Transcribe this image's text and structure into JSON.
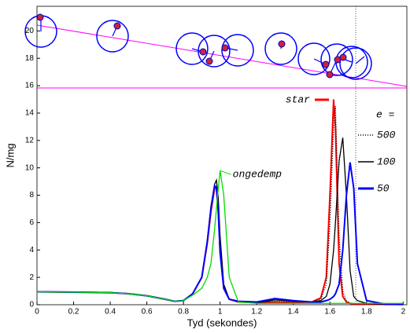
{
  "chart_data": {
    "type": "line",
    "xlabel": "Tyd (sekondes)",
    "ylabel": "N/mg",
    "legend_title": "e =",
    "xlim": [
      0,
      2.02
    ],
    "ylim": [
      0,
      21.8
    ],
    "xticks": [
      0,
      0.2,
      0.4,
      0.6,
      0.8,
      1,
      1.2,
      1.4,
      1.6,
      1.8,
      2
    ],
    "yticks": [
      0,
      2,
      4,
      6,
      8,
      10,
      12,
      14,
      16,
      18,
      20
    ],
    "x": [
      0,
      0.1,
      0.2,
      0.3,
      0.4,
      0.5,
      0.6,
      0.7,
      0.75,
      0.8,
      0.85,
      0.9,
      0.93,
      0.95,
      0.97,
      0.98,
      0.99,
      1.0,
      1.02,
      1.05,
      1.1,
      1.2,
      1.3,
      1.4,
      1.5,
      1.55,
      1.58,
      1.6,
      1.62,
      1.63,
      1.65,
      1.67,
      1.69,
      1.71,
      1.73,
      1.75,
      1.8,
      1.9,
      2.0
    ],
    "series": [
      {
        "name": "star",
        "color": "#ff0000",
        "dash": "solid",
        "values": [
          0.95,
          0.93,
          0.92,
          0.9,
          0.88,
          0.8,
          0.65,
          0.4,
          0.25,
          0.3,
          0.8,
          2,
          4.5,
          6.8,
          8.5,
          8.6,
          7,
          4,
          1.2,
          0.4,
          0.2,
          0.15,
          0.2,
          0.15,
          0.2,
          0.5,
          2,
          8,
          15,
          13,
          3,
          0.6,
          0.2,
          0.1,
          0.05,
          0.05,
          0.05,
          0.02,
          0.02
        ]
      },
      {
        "name": "500",
        "color": "#000000",
        "dash": "dotted",
        "values": [
          0.95,
          0.93,
          0.92,
          0.9,
          0.88,
          0.8,
          0.65,
          0.4,
          0.25,
          0.3,
          0.8,
          2,
          4.5,
          6.9,
          8.6,
          8.7,
          7.2,
          4.2,
          1.3,
          0.4,
          0.2,
          0.15,
          0.25,
          0.2,
          0.2,
          0.4,
          1.5,
          6,
          13,
          14.5,
          5,
          1,
          0.3,
          0.1,
          0.05,
          0.05,
          0.05,
          0.02,
          0.02
        ]
      },
      {
        "name": "100",
        "color": "#000000",
        "dash": "solid",
        "values": [
          0.95,
          0.93,
          0.92,
          0.9,
          0.88,
          0.8,
          0.65,
          0.4,
          0.25,
          0.3,
          0.8,
          2,
          4.7,
          7.2,
          8.8,
          9.1,
          7.8,
          5,
          1.5,
          0.4,
          0.2,
          0.15,
          0.35,
          0.25,
          0.2,
          0.3,
          0.6,
          1.5,
          4,
          6,
          10.5,
          12.2,
          8,
          2.5,
          0.6,
          0.3,
          0.1,
          0.03,
          0.02
        ]
      },
      {
        "name": "50",
        "color": "#0000ff",
        "dash": "solid",
        "values": [
          0.95,
          0.93,
          0.92,
          0.9,
          0.88,
          0.8,
          0.65,
          0.4,
          0.25,
          0.3,
          0.8,
          2,
          4.6,
          7,
          8.7,
          8.5,
          6.8,
          3.8,
          1.2,
          0.4,
          0.25,
          0.2,
          0.45,
          0.3,
          0.2,
          0.2,
          0.3,
          0.4,
          0.6,
          0.8,
          1.5,
          4,
          8,
          10.4,
          8.5,
          3,
          0.3,
          0.05,
          0.02
        ]
      },
      {
        "name": "ongedemp",
        "color": "#00dd00",
        "dash": "solid",
        "values": [
          0.95,
          0.93,
          0.92,
          0.9,
          0.88,
          0.8,
          0.65,
          0.4,
          0.25,
          0.3,
          0.7,
          1.2,
          2,
          3,
          5.5,
          7,
          8.5,
          9.8,
          8,
          2,
          0.2,
          0.1,
          0.1,
          0.1,
          0.1,
          0.1,
          0.1,
          0.1,
          0.1,
          0.1,
          0.1,
          0.1,
          0.1,
          0.1,
          0.1,
          0.1,
          0.1,
          0.1,
          0.1
        ]
      }
    ]
  }
}
